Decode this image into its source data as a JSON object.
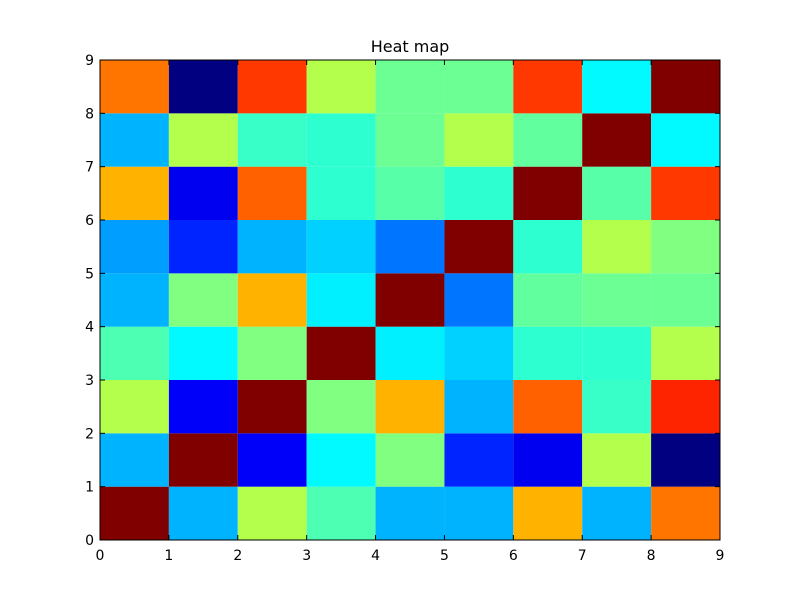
{
  "chart_data": {
    "type": "heatmap",
    "title": "Heat map",
    "xlabel": "",
    "ylabel": "",
    "xlim": [
      0,
      9
    ],
    "ylim": [
      0,
      9
    ],
    "x_ticks": [
      "0",
      "1",
      "2",
      "3",
      "4",
      "5",
      "6",
      "7",
      "8",
      "9"
    ],
    "y_ticks": [
      "0",
      "1",
      "2",
      "3",
      "4",
      "5",
      "6",
      "7",
      "8",
      "9"
    ],
    "colormap": "jet",
    "color_range": [
      0,
      1
    ],
    "grid": false,
    "legend": "none",
    "rows_bottom_to_top": [
      [
        1.0,
        0.3,
        0.55,
        0.45,
        0.3,
        0.3,
        0.7,
        0.3,
        0.76
      ],
      [
        0.3,
        1.0,
        0.12,
        0.37,
        0.5,
        0.16,
        0.11,
        0.55,
        0.0
      ],
      [
        0.55,
        0.12,
        1.0,
        0.5,
        0.7,
        0.3,
        0.78,
        0.43,
        0.84
      ],
      [
        0.45,
        0.37,
        0.5,
        1.0,
        0.36,
        0.33,
        0.42,
        0.42,
        0.55
      ],
      [
        0.3,
        0.5,
        0.7,
        0.36,
        1.0,
        0.24,
        0.47,
        0.48,
        0.48
      ],
      [
        0.28,
        0.16,
        0.3,
        0.33,
        0.24,
        1.0,
        0.42,
        0.55,
        0.5
      ],
      [
        0.7,
        0.11,
        0.78,
        0.42,
        0.46,
        0.42,
        1.0,
        0.46,
        0.82
      ],
      [
        0.3,
        0.55,
        0.43,
        0.42,
        0.48,
        0.55,
        0.47,
        1.0,
        0.37
      ],
      [
        0.76,
        0.0,
        0.82,
        0.55,
        0.48,
        0.48,
        0.82,
        0.37,
        1.0
      ]
    ]
  }
}
